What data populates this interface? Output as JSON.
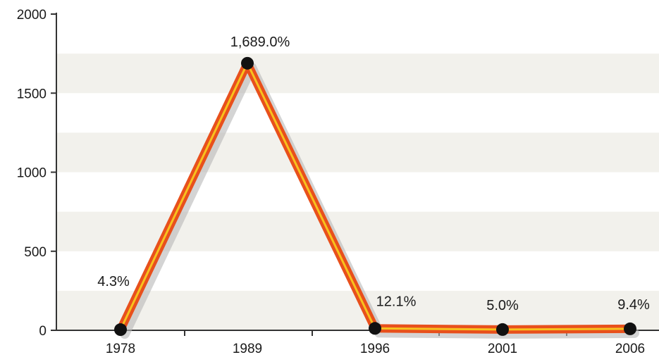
{
  "chart_data": {
    "type": "line",
    "title": "",
    "xlabel": "",
    "ylabel": "",
    "categories": [
      "1978",
      "1989",
      "1996",
      "2001",
      "2006"
    ],
    "values": [
      4.3,
      1689.0,
      12.1,
      5.0,
      9.4
    ],
    "data_labels": [
      "4.3%",
      "1,689.0%",
      "12.1%",
      "5.0%",
      "9.4%"
    ],
    "y_ticks": [
      0,
      500,
      1000,
      1500,
      2000
    ],
    "ylim": [
      0,
      2000
    ],
    "grid": "horizontal bands",
    "legend": "none",
    "colors": {
      "line_outer": "#e8501c",
      "line_inner": "#f7c21e",
      "shadow": "#b8b8b8",
      "marker": "#111111",
      "band": "#f2f1ec",
      "axis": "#333333"
    }
  }
}
